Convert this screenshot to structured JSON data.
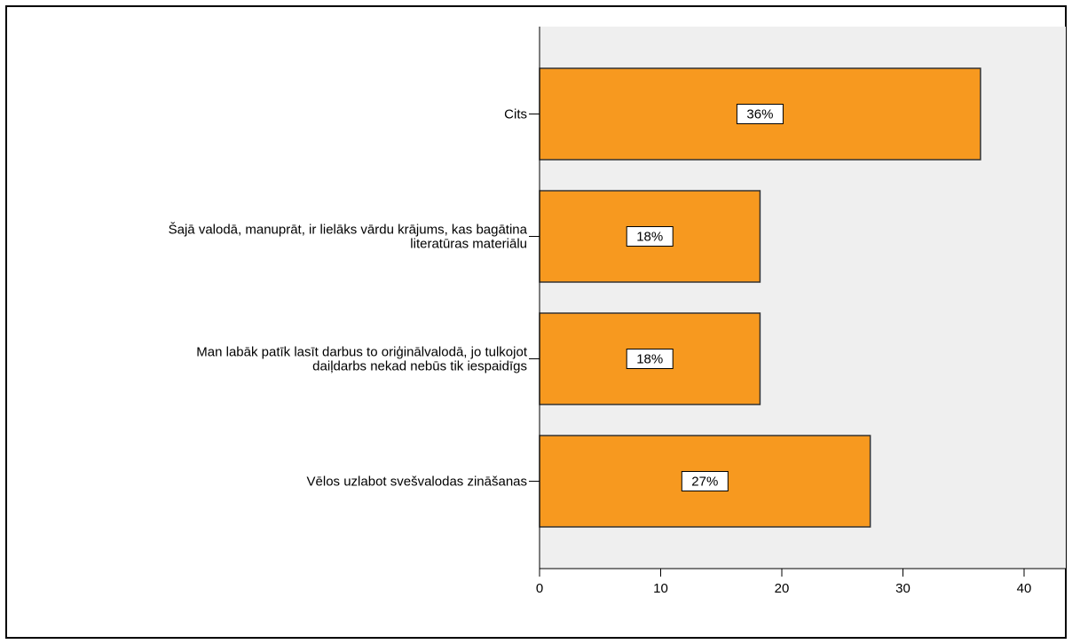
{
  "chart_data": {
    "type": "bar",
    "orientation": "horizontal",
    "categories": [
      [
        "Cits"
      ],
      [
        "Šajā valodā, manuprāt, ir lielāks vārdu krājums, kas bagātina",
        "literatūras materiālu"
      ],
      [
        "Man labāk patīk lasīt darbus to oriģinālvalodā, jo tulkojot",
        "daiļdarbs nekad nebūs tik iespaidīgs"
      ],
      [
        "Vēlos uzlabot svešvalodas zināšanas"
      ]
    ],
    "values": [
      36.4,
      18.2,
      18.2,
      27.3
    ],
    "data_labels": [
      "36%",
      "18%",
      "18%",
      "27%"
    ],
    "xlim": [
      0,
      44
    ],
    "xticks": [
      0,
      10,
      20,
      30,
      40
    ],
    "xlabel": "",
    "ylabel": "",
    "title": "",
    "grid": false,
    "colors": {
      "bar_fill": "#f7991f",
      "bar_stroke": "#333333",
      "plot_background": "#efefef"
    }
  }
}
